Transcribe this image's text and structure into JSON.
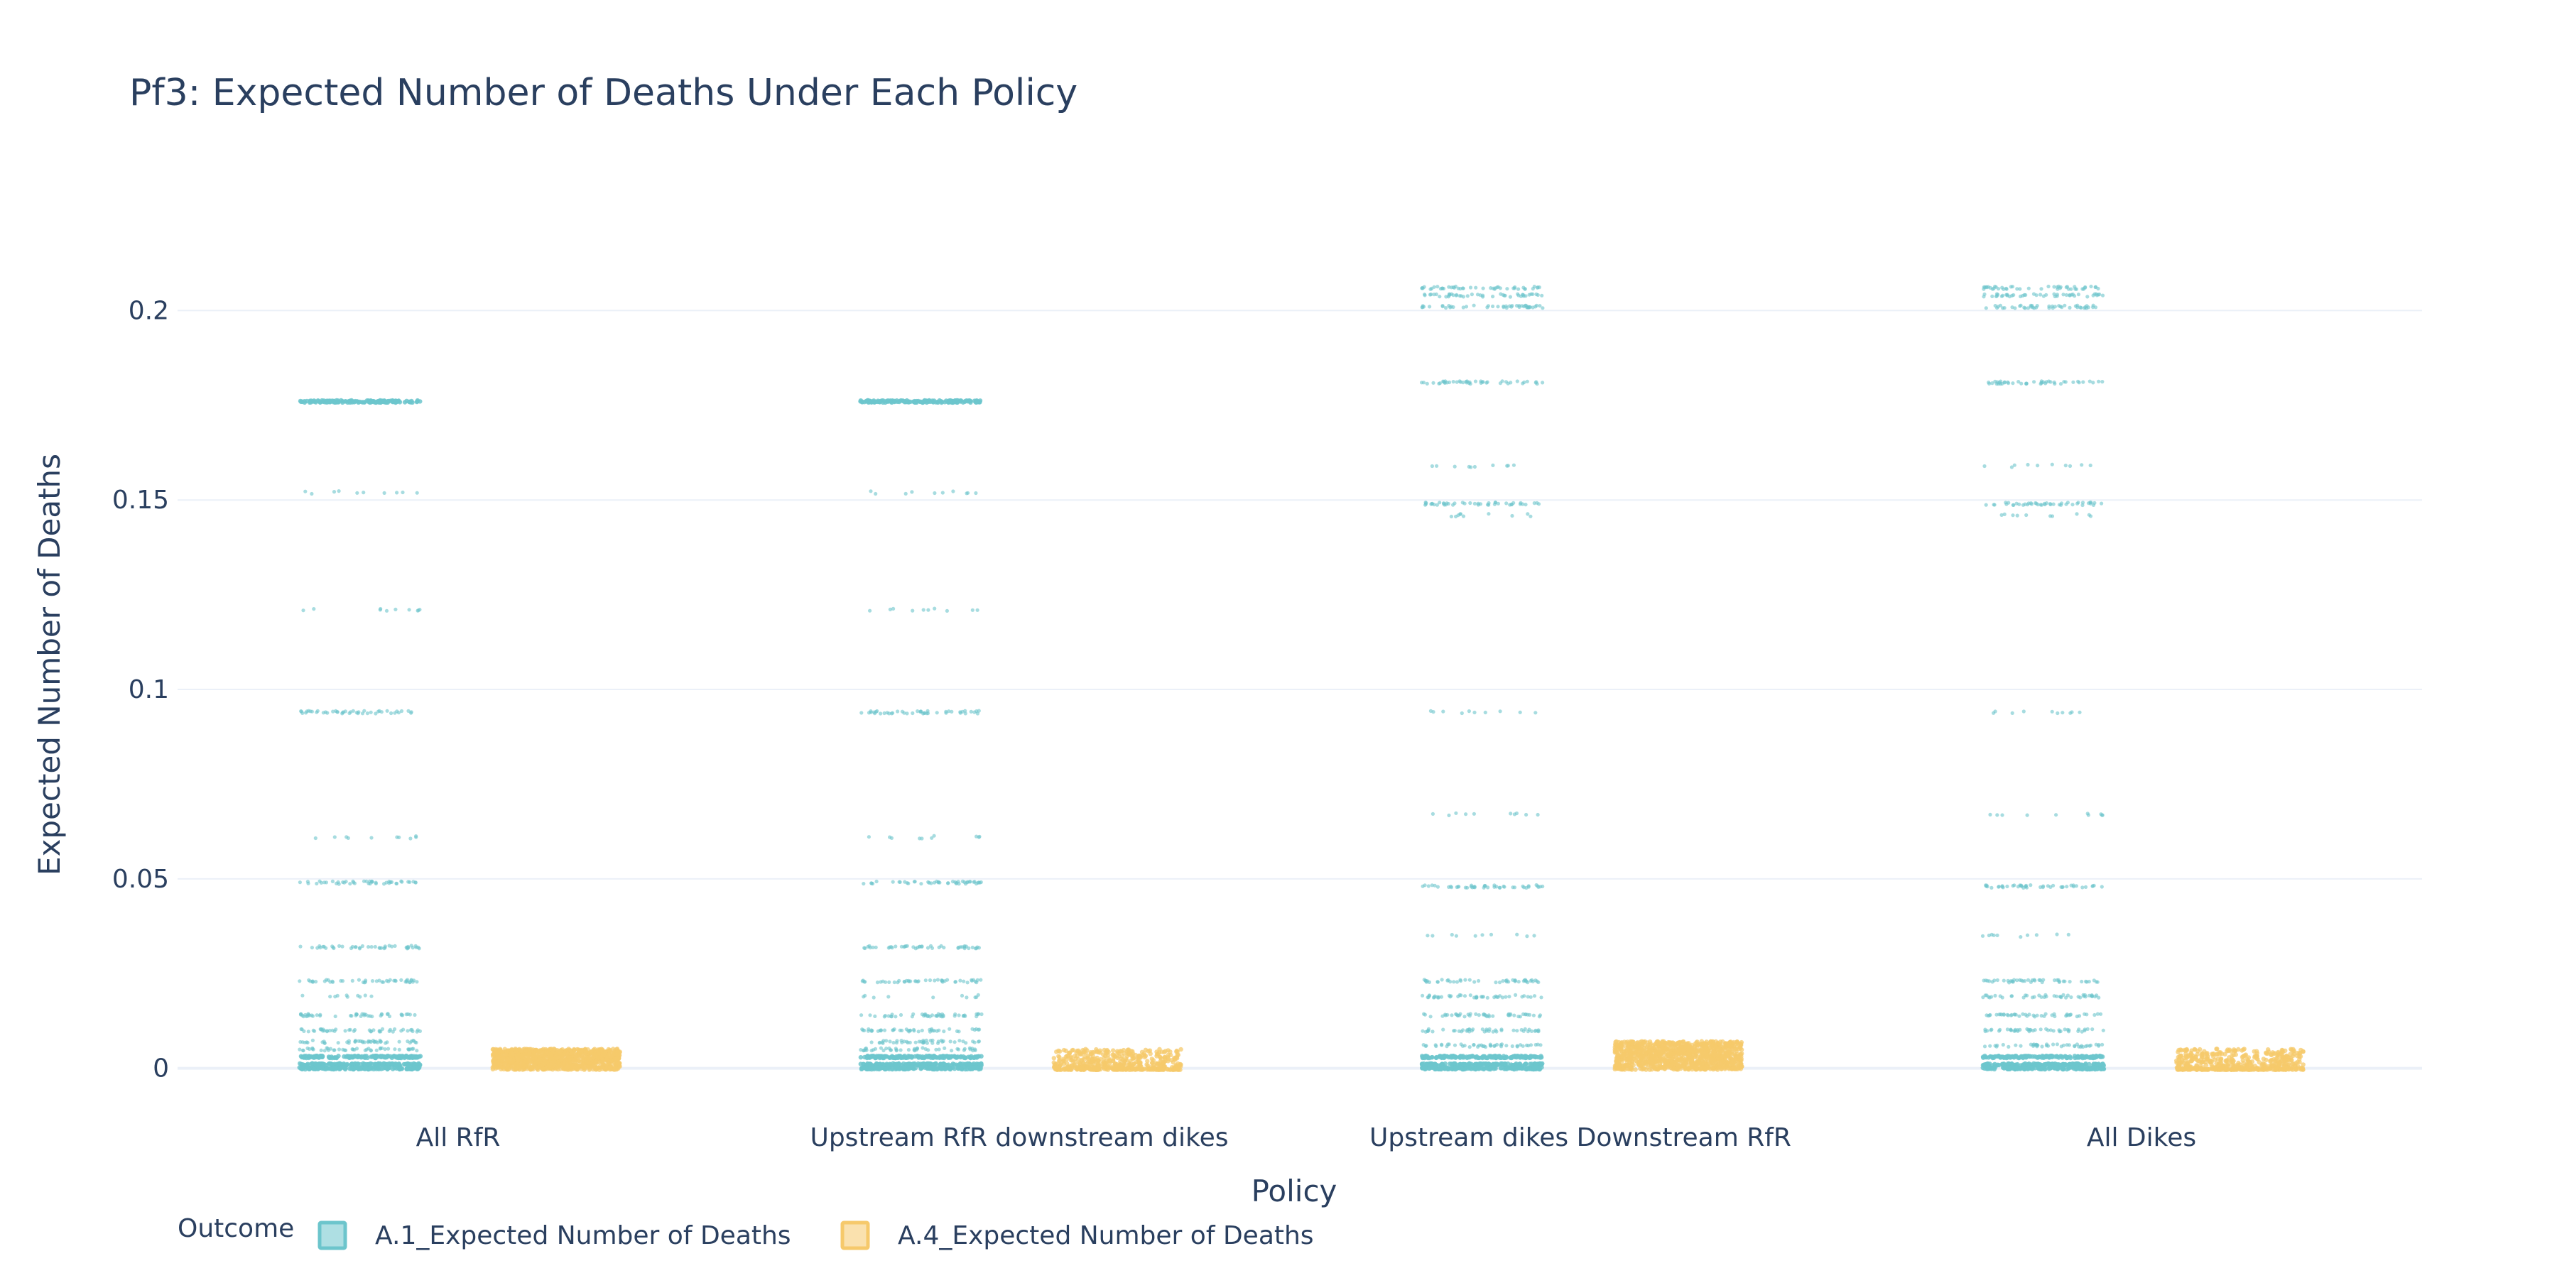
{
  "chart_data": {
    "type": "scatter",
    "title": "Pf3: Expected Number of Deaths Under Each Policy",
    "xlabel": "Policy",
    "ylabel": "Expected Number of Deaths",
    "categories": [
      "All RfR",
      "Upstream RfR downstream dikes",
      "Upstream dikes Downstream RfR",
      "All Dikes"
    ],
    "yticks": [
      0,
      0.05,
      0.1,
      0.15,
      0.2
    ],
    "ytick_labels": [
      "0",
      "0.05",
      "0.1",
      "0.15",
      "0.2"
    ],
    "ylim": [
      -0.004,
      0.222
    ],
    "grid": true,
    "legend": {
      "title": "Outcome",
      "placement": "bottom-left",
      "items": [
        "A.1_Expected Number of Deaths",
        "A.4_Expected Number of Deaths"
      ]
    },
    "colors": {
      "A.1": "#6cc5cc",
      "A.4": "#f6c96b"
    },
    "series": [
      {
        "name": "A.1_Expected Number of Deaths",
        "levels": [
          [
            {
              "y": 0.176,
              "density": "dense"
            },
            {
              "y": 0.152,
              "density": "sparse"
            },
            {
              "y": 0.121,
              "density": "sparse"
            },
            {
              "y": 0.094,
              "density": "medium"
            },
            {
              "y": 0.061,
              "density": "sparse"
            },
            {
              "y": 0.049,
              "density": "medium"
            },
            {
              "y": 0.032,
              "density": "medium"
            },
            {
              "y": 0.023,
              "density": "medium"
            },
            {
              "y": 0.019,
              "density": "sparse"
            },
            {
              "y": 0.014,
              "density": "medium"
            },
            {
              "y": 0.01,
              "density": "medium"
            },
            {
              "y": 0.007,
              "density": "medium"
            },
            {
              "y": 0.005,
              "density": "medium"
            },
            {
              "y": 0.003,
              "density": "dense"
            },
            {
              "y": 0.001,
              "density": "dense"
            },
            {
              "y": 0.0,
              "density": "dense"
            }
          ],
          [
            {
              "y": 0.176,
              "density": "dense"
            },
            {
              "y": 0.152,
              "density": "sparse"
            },
            {
              "y": 0.121,
              "density": "sparse"
            },
            {
              "y": 0.094,
              "density": "medium"
            },
            {
              "y": 0.061,
              "density": "sparse"
            },
            {
              "y": 0.049,
              "density": "medium"
            },
            {
              "y": 0.032,
              "density": "medium"
            },
            {
              "y": 0.023,
              "density": "medium"
            },
            {
              "y": 0.019,
              "density": "sparse"
            },
            {
              "y": 0.014,
              "density": "medium"
            },
            {
              "y": 0.01,
              "density": "medium"
            },
            {
              "y": 0.007,
              "density": "medium"
            },
            {
              "y": 0.005,
              "density": "medium"
            },
            {
              "y": 0.003,
              "density": "dense"
            },
            {
              "y": 0.001,
              "density": "dense"
            },
            {
              "y": 0.0,
              "density": "dense"
            }
          ],
          [
            {
              "y": 0.206,
              "density": "medium"
            },
            {
              "y": 0.204,
              "density": "medium"
            },
            {
              "y": 0.201,
              "density": "medium"
            },
            {
              "y": 0.181,
              "density": "medium"
            },
            {
              "y": 0.159,
              "density": "sparse"
            },
            {
              "y": 0.149,
              "density": "medium"
            },
            {
              "y": 0.146,
              "density": "sparse"
            },
            {
              "y": 0.094,
              "density": "sparse"
            },
            {
              "y": 0.067,
              "density": "sparse"
            },
            {
              "y": 0.048,
              "density": "medium"
            },
            {
              "y": 0.035,
              "density": "sparse"
            },
            {
              "y": 0.023,
              "density": "medium"
            },
            {
              "y": 0.019,
              "density": "medium"
            },
            {
              "y": 0.014,
              "density": "medium"
            },
            {
              "y": 0.01,
              "density": "medium"
            },
            {
              "y": 0.006,
              "density": "medium"
            },
            {
              "y": 0.003,
              "density": "dense"
            },
            {
              "y": 0.001,
              "density": "dense"
            },
            {
              "y": 0.0,
              "density": "dense"
            }
          ],
          [
            {
              "y": 0.206,
              "density": "medium"
            },
            {
              "y": 0.204,
              "density": "medium"
            },
            {
              "y": 0.201,
              "density": "medium"
            },
            {
              "y": 0.181,
              "density": "medium"
            },
            {
              "y": 0.159,
              "density": "sparse"
            },
            {
              "y": 0.149,
              "density": "medium"
            },
            {
              "y": 0.146,
              "density": "sparse"
            },
            {
              "y": 0.094,
              "density": "sparse"
            },
            {
              "y": 0.067,
              "density": "sparse"
            },
            {
              "y": 0.048,
              "density": "medium"
            },
            {
              "y": 0.035,
              "density": "sparse"
            },
            {
              "y": 0.023,
              "density": "medium"
            },
            {
              "y": 0.019,
              "density": "medium"
            },
            {
              "y": 0.014,
              "density": "medium"
            },
            {
              "y": 0.01,
              "density": "medium"
            },
            {
              "y": 0.006,
              "density": "medium"
            },
            {
              "y": 0.003,
              "density": "dense"
            },
            {
              "y": 0.001,
              "density": "dense"
            },
            {
              "y": 0.0,
              "density": "dense"
            }
          ]
        ]
      },
      {
        "name": "A.4_Expected Number of Deaths",
        "ranges": [
          {
            "min": 0.0,
            "max": 0.0055
          },
          {
            "min": 0.0,
            "max": 0.0055
          },
          {
            "min": 0.0,
            "max": 0.0075
          },
          {
            "min": 0.0,
            "max": 0.0055
          }
        ]
      }
    ]
  }
}
